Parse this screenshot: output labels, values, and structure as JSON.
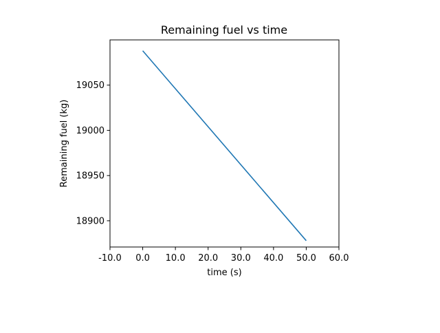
{
  "chart_data": {
    "type": "line",
    "title": "Remaining fuel vs time",
    "xlabel": "time (s)",
    "ylabel": "Remaining fuel (kg)",
    "xlim": [
      -10,
      60
    ],
    "ylim": [
      18871,
      19100
    ],
    "xticks": [
      -10,
      0,
      10,
      20,
      30,
      40,
      50,
      60
    ],
    "xtick_labels": [
      "-10.0",
      "0.0",
      "10.0",
      "20.0",
      "30.0",
      "40.0",
      "50.0",
      "60.0"
    ],
    "yticks": [
      18900,
      18950,
      19000,
      19050
    ],
    "ytick_labels": [
      "18900",
      "18950",
      "19000",
      "19050"
    ],
    "grid": false,
    "series": [
      {
        "color": "#1f77b4",
        "x": [
          0,
          50
        ],
        "y": [
          19088,
          18878
        ]
      }
    ]
  }
}
